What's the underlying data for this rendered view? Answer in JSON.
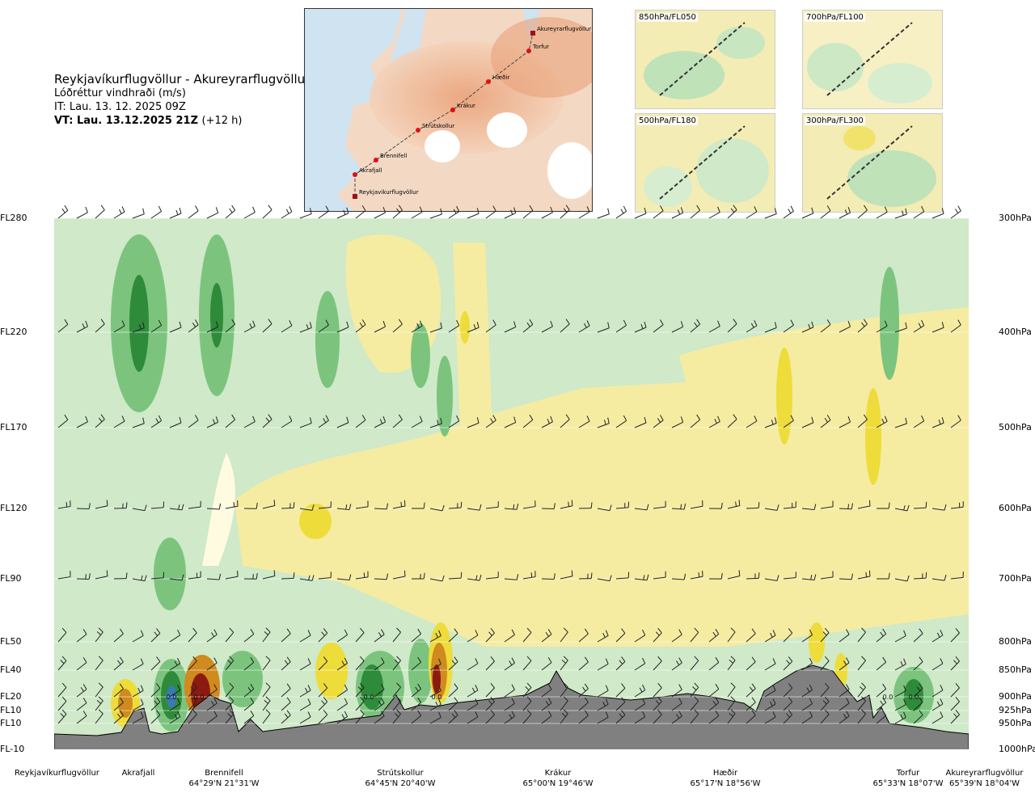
{
  "header": {
    "route": "Reykjavíkurflugvöllur - Akureyrarflugvöllur",
    "variable": "Lóðréttur vindhraði (m/s)",
    "issue_time": "IT: Lau. 13. 12. 2025 09Z",
    "valid_time": "VT: Lau. 13.12.2025 21Z",
    "lead_time": "(+12 h)"
  },
  "map": {
    "points": [
      "Akureyrarflugvöllur",
      "Torfur",
      "Hæðir",
      "Krákur",
      "Strútskollur",
      "Brennifell",
      "Akrafjall",
      "Reykjavíkurflugvöllur"
    ]
  },
  "insets": [
    {
      "label": "850hPa/FL050"
    },
    {
      "label": "700hPa/FL100"
    },
    {
      "label": "500hPa/FL180"
    },
    {
      "label": "300hPa/FL300"
    }
  ],
  "chart_data": {
    "type": "heatmap",
    "title": "Lóðréttur vindhraði (m/s)",
    "levels": [
      {
        "fl": "FL280",
        "hpa": "300hPa"
      },
      {
        "fl": "FL220",
        "hpa": "400hPa"
      },
      {
        "fl": "FL170",
        "hpa": "500hPa"
      },
      {
        "fl": "FL120",
        "hpa": "600hPa"
      },
      {
        "fl": "FL90",
        "hpa": "700hPa"
      },
      {
        "fl": "FL50",
        "hpa": "800hPa"
      },
      {
        "fl": "FL40",
        "hpa": "850hPa"
      },
      {
        "fl": "FL20",
        "hpa": "900hPa"
      },
      {
        "fl": "FL10",
        "hpa": "925hPa"
      },
      {
        "fl": "FL10",
        "hpa": "950hPa"
      },
      {
        "fl": "FL-10",
        "hpa": "1000hPa"
      }
    ],
    "waypoints": [
      {
        "name": "Reykjavíkurflugvöllur",
        "coord": ""
      },
      {
        "name": "Akrafjall",
        "coord": ""
      },
      {
        "name": "Brennifell",
        "coord": "64°29'N 21°31'W"
      },
      {
        "name": "Strútskollur",
        "coord": "64°45'N 20°40'W"
      },
      {
        "name": "Krákur",
        "coord": "65°00'N 19°46'W"
      },
      {
        "name": "Hæðir",
        "coord": "65°17'N 18°56'W"
      },
      {
        "name": "Torfur",
        "coord": "65°33'N 18°07'W"
      },
      {
        "name": "Akureyrarflugvöllur",
        "coord": "65°39'N 18°04'W"
      }
    ],
    "contour_labels": [
      "0.0",
      "0.0",
      "0.0",
      "0.0",
      "0.0",
      "0.0"
    ],
    "colors": {
      "strong_down": "#2e8b3a",
      "down": "#7cc47e",
      "weak_down": "#cfe9c9",
      "near_zero": "#fffbe0",
      "weak_up": "#f5eca2",
      "up": "#eedc3a",
      "strong_up": "#d08a1e",
      "very_strong_up": "#8b1a10",
      "terrain": "#808080"
    }
  }
}
